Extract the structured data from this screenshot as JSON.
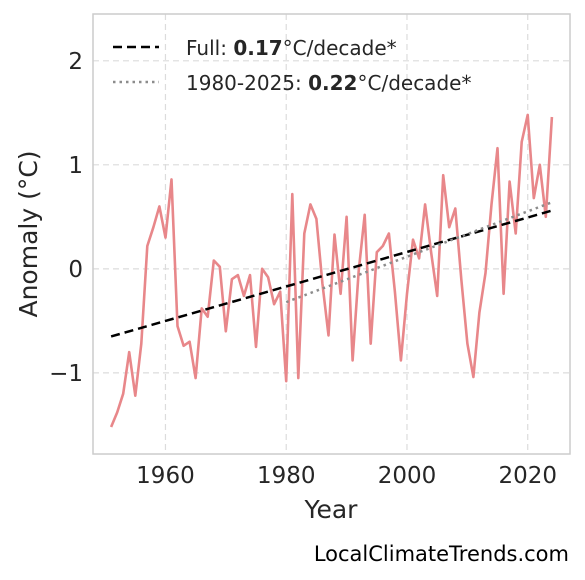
{
  "source_label": "LocalClimateTrends.com",
  "chart_data": {
    "type": "line",
    "xlabel": "Year",
    "ylabel": "Anomaly (°C)",
    "xlim": [
      1948,
      2027
    ],
    "ylim": [
      -1.78,
      2.45
    ],
    "x_ticks": [
      1960,
      1980,
      2000,
      2020
    ],
    "y_ticks": [
      -1,
      0,
      1,
      2
    ],
    "y_tick_labels": [
      "−1",
      "0",
      "1",
      "2"
    ],
    "grid": true,
    "legend_position": "top-left",
    "colors": {
      "series": "#e8878a",
      "full_trend": "#000000",
      "recent_trend": "#8c8c8c",
      "grid": "#dcdcdc",
      "frame": "#cccccc"
    },
    "series": [
      {
        "x": [
          1951,
          1952,
          1953,
          1954,
          1955,
          1956,
          1957,
          1958,
          1959,
          1960,
          1961,
          1962,
          1963,
          1964,
          1965,
          1966,
          1967,
          1968,
          1969,
          1970,
          1971,
          1972,
          1973,
          1974,
          1975,
          1976,
          1977,
          1978,
          1979,
          1980,
          1981,
          1982,
          1983,
          1984,
          1985,
          1986,
          1987,
          1988,
          1989,
          1990,
          1991,
          1992,
          1993,
          1994,
          1995,
          1996,
          1997,
          1998,
          1999,
          2000,
          2001,
          2002,
          2003,
          2004,
          2005,
          2006,
          2007,
          2008,
          2009,
          2010,
          2011,
          2012,
          2013,
          2014,
          2015,
          2016,
          2017,
          2018,
          2019,
          2020,
          2021,
          2022,
          2023,
          2024
        ],
        "values": [
          -1.52,
          -1.38,
          -1.2,
          -0.8,
          -1.22,
          -0.72,
          0.22,
          0.4,
          0.6,
          0.3,
          0.86,
          -0.55,
          -0.74,
          -0.7,
          -1.05,
          -0.38,
          -0.46,
          0.08,
          0.02,
          -0.6,
          -0.1,
          -0.06,
          -0.26,
          -0.06,
          -0.75,
          0.0,
          -0.08,
          -0.34,
          -0.22,
          -1.08,
          0.72,
          -1.05,
          0.34,
          0.62,
          0.48,
          -0.14,
          -0.64,
          0.33,
          -0.24,
          0.5,
          -0.88,
          -0.02,
          0.52,
          -0.72,
          0.16,
          0.22,
          0.34,
          -0.22,
          -0.88,
          -0.24,
          0.28,
          0.1,
          0.62,
          0.16,
          -0.26,
          0.9,
          0.4,
          0.58,
          -0.1,
          -0.72,
          -1.04,
          -0.42,
          -0.04,
          0.62,
          1.16,
          -0.24,
          0.84,
          0.34,
          1.22,
          1.48,
          0.68,
          1.0,
          0.5,
          1.46
        ]
      }
    ],
    "trend_lines": [
      {
        "name": "Full",
        "rate": "0.17",
        "unit": "°C/decade*",
        "style": "dashed",
        "x": [
          1951,
          2024
        ],
        "values": [
          -0.65,
          0.56
        ]
      },
      {
        "name": "1980-2025",
        "rate": "0.22",
        "unit": "°C/decade*",
        "style": "dotted",
        "x": [
          1980,
          2024
        ],
        "values": [
          -0.32,
          0.64
        ]
      }
    ]
  }
}
